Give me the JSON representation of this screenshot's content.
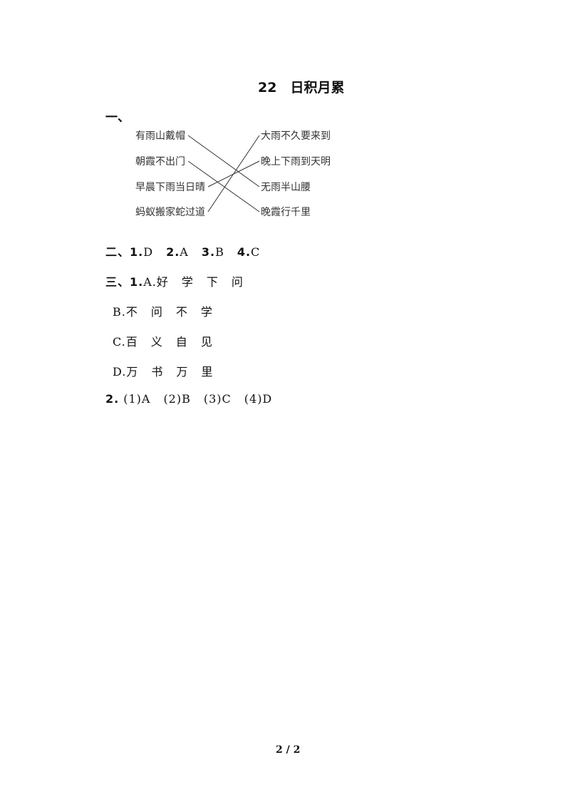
{
  "title": "22　日积月累",
  "section1": {
    "label": "一、",
    "left": [
      "有雨山戴帽",
      "朝霞不出门",
      "早晨下雨当日晴",
      "蚂蚁搬家蛇过道"
    ],
    "right": [
      "大雨不久要来到",
      "晚上下雨到天明",
      "无雨半山腰",
      "晚霞行千里"
    ],
    "matches": [
      [
        0,
        2
      ],
      [
        1,
        3
      ],
      [
        2,
        1
      ],
      [
        3,
        0
      ]
    ]
  },
  "section2": {
    "label": "二、",
    "answers": [
      {
        "num": "1.",
        "val": "D"
      },
      {
        "num": "2.",
        "val": "A"
      },
      {
        "num": "3.",
        "val": "B"
      },
      {
        "num": "4.",
        "val": "C"
      }
    ]
  },
  "section3": {
    "label": "三、",
    "q1_num": "1.",
    "q1": [
      {
        "letter": "A.",
        "chars": [
          "好",
          "学",
          "下",
          "问"
        ]
      },
      {
        "letter": "B.",
        "chars": [
          "不",
          "问",
          "不",
          "学"
        ]
      },
      {
        "letter": "C.",
        "chars": [
          "百",
          "义",
          "自",
          "见"
        ]
      },
      {
        "letter": "D.",
        "chars": [
          "万",
          "书",
          "万",
          "里"
        ]
      }
    ],
    "q2_num": "2.",
    "q2": [
      "(1)A",
      "(2)B",
      "(3)C",
      "(4)D"
    ]
  },
  "footer": "2 / 2"
}
